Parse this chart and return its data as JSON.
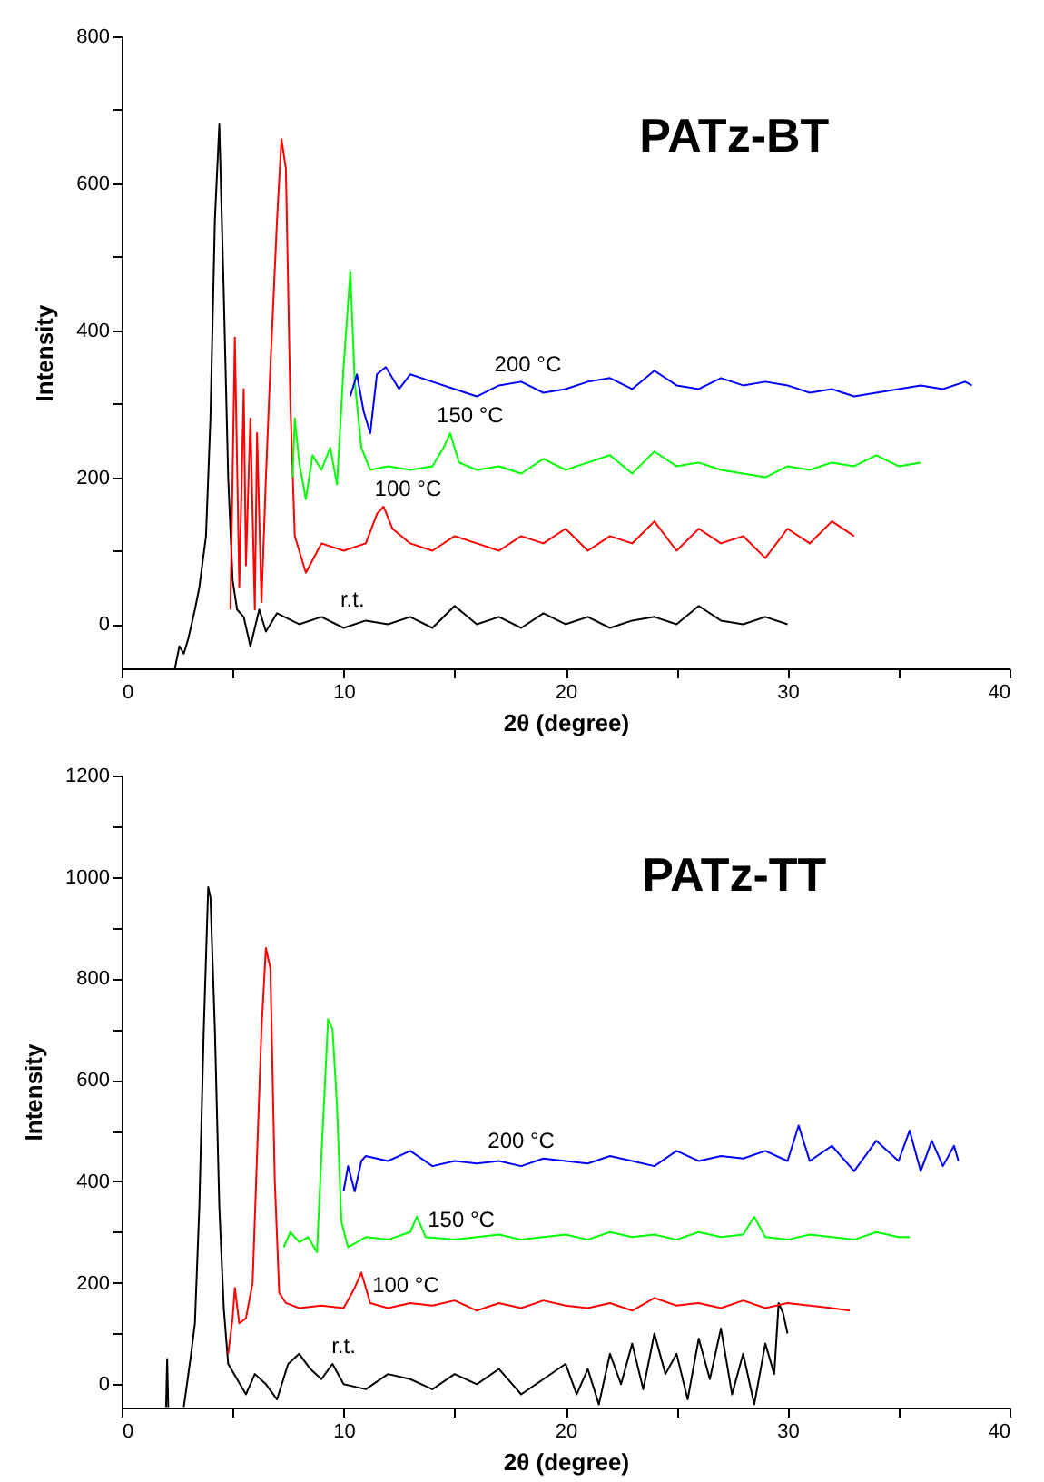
{
  "chart_data": [
    {
      "type": "line",
      "title": "PATz-BT",
      "xlabel": "2θ (degree)",
      "ylabel": "Intensity",
      "xlim": [
        0,
        40
      ],
      "ylim": [
        -60,
        800
      ],
      "xticks": [
        0,
        {
          "value": 5,
          "label": null
        },
        10,
        {
          "value": 15,
          "label": null
        },
        20,
        {
          "value": 25,
          "label": null
        },
        30,
        {
          "value": 35,
          "label": null
        },
        40
      ],
      "yticks": [
        0,
        {
          "value": 100,
          "label": null
        },
        200,
        {
          "value": 300,
          "label": null
        },
        400,
        {
          "value": 500,
          "label": null
        },
        600,
        {
          "value": 700,
          "label": null
        },
        800
      ],
      "grid": false,
      "legend": false,
      "series": [
        {
          "name": "r.t.",
          "color": "#000000",
          "x": [
            2.4,
            2.6,
            2.8,
            3.0,
            3.3,
            3.5,
            3.8,
            4.0,
            4.2,
            4.4,
            4.6,
            4.8,
            5.0,
            5.2,
            5.5,
            5.8,
            6.2,
            6.5,
            7,
            8,
            9,
            10,
            11,
            12,
            13,
            14,
            15,
            16,
            17,
            18,
            19,
            20,
            21,
            22,
            23,
            24,
            25,
            26,
            27,
            28,
            29,
            30
          ],
          "values": [
            -60,
            -30,
            -40,
            -20,
            20,
            50,
            120,
            280,
            550,
            680,
            450,
            200,
            60,
            20,
            10,
            -30,
            20,
            -10,
            15,
            0,
            10,
            -5,
            5,
            0,
            10,
            -5,
            25,
            0,
            10,
            -5,
            15,
            0,
            10,
            -5,
            5,
            10,
            0,
            25,
            5,
            0,
            10,
            0
          ]
        },
        {
          "name": "100 °C",
          "color": "#ff0000",
          "x": [
            4.9,
            5.1,
            5.3,
            5.5,
            5.6,
            5.8,
            6.0,
            6.1,
            6.3,
            6.5,
            6.7,
            7.0,
            7.2,
            7.4,
            7.6,
            7.8,
            8.0,
            8.3,
            9,
            10,
            11,
            11.5,
            11.8,
            12.2,
            13,
            14,
            15,
            16,
            17,
            18,
            19,
            20,
            21,
            22,
            23,
            24,
            25,
            26,
            27,
            28,
            29,
            30,
            31,
            32,
            33
          ],
          "values": [
            20,
            390,
            50,
            320,
            80,
            280,
            20,
            260,
            30,
            200,
            350,
            550,
            660,
            620,
            300,
            120,
            100,
            70,
            110,
            100,
            110,
            150,
            160,
            130,
            110,
            100,
            120,
            110,
            100,
            120,
            110,
            130,
            100,
            120,
            110,
            140,
            100,
            130,
            110,
            120,
            90,
            130,
            110,
            140,
            120
          ]
        },
        {
          "name": "150 °C",
          "color": "#00ff00",
          "x": [
            7.7,
            7.8,
            8.0,
            8.3,
            8.6,
            9.0,
            9.4,
            9.7,
            10.0,
            10.3,
            10.5,
            10.8,
            11.2,
            12,
            13,
            14,
            14.5,
            14.8,
            15.2,
            16,
            17,
            18,
            19,
            20,
            21,
            22,
            23,
            24,
            25,
            26,
            27,
            28,
            29,
            30,
            31,
            32,
            33,
            34,
            35,
            36
          ],
          "values": [
            200,
            280,
            220,
            170,
            230,
            210,
            240,
            190,
            350,
            480,
            330,
            240,
            210,
            215,
            210,
            215,
            240,
            260,
            220,
            210,
            215,
            205,
            225,
            210,
            220,
            230,
            205,
            235,
            215,
            220,
            210,
            205,
            200,
            215,
            210,
            220,
            215,
            230,
            215,
            220
          ]
        },
        {
          "name": "200 °C",
          "color": "#0000ff",
          "x": [
            10.3,
            10.6,
            10.9,
            11.2,
            11.5,
            11.9,
            12.5,
            13,
            14,
            15,
            16,
            17,
            18,
            19,
            20,
            21,
            22,
            23,
            24,
            25,
            26,
            27,
            28,
            29,
            30,
            31,
            32,
            33,
            34,
            35,
            36,
            37,
            38,
            38.3
          ],
          "values": [
            310,
            340,
            290,
            260,
            340,
            350,
            320,
            340,
            330,
            320,
            310,
            325,
            330,
            315,
            320,
            330,
            335,
            320,
            345,
            325,
            320,
            335,
            325,
            330,
            325,
            315,
            320,
            310,
            315,
            320,
            325,
            320,
            330,
            325
          ]
        }
      ]
    },
    {
      "type": "line",
      "title": "PATz-TT",
      "xlabel": "2θ (degree)",
      "ylabel": "Intensity",
      "xlim": [
        0,
        40
      ],
      "ylim": [
        -46,
        1200
      ],
      "xticks": [
        0,
        {
          "value": 5,
          "label": null
        },
        10,
        {
          "value": 15,
          "label": null
        },
        20,
        {
          "value": 25,
          "label": null
        },
        30,
        {
          "value": 35,
          "label": null
        },
        40
      ],
      "yticks": [
        0,
        {
          "value": 100,
          "label": null
        },
        200,
        {
          "value": 300,
          "label": null
        },
        400,
        {
          "value": 500,
          "label": null
        },
        600,
        {
          "value": 700,
          "label": null
        },
        800,
        {
          "value": 900,
          "label": null
        },
        1000,
        {
          "value": 1100,
          "label": null
        },
        1200
      ],
      "grid": false,
      "legend": false,
      "series": [
        {
          "name": "r.t.",
          "color": "#000000",
          "x": [
            2.0,
            2.05,
            2.1,
            2.4,
            2.8,
            3.1,
            3.3,
            3.5,
            3.7,
            3.9,
            4.0,
            4.2,
            4.4,
            4.6,
            4.8,
            5.2,
            5.6,
            6,
            6.5,
            7,
            7.5,
            8,
            8.5,
            9,
            9.5,
            10,
            11,
            12,
            13,
            14,
            15,
            16,
            17,
            18,
            19,
            20,
            20.5,
            21,
            21.5,
            22,
            22.5,
            23,
            23.5,
            24,
            24.5,
            25,
            25.5,
            26,
            26.5,
            27,
            27.5,
            28,
            28.5,
            29,
            29.4,
            29.6,
            29.8,
            30
          ],
          "values": [
            -45,
            50,
            -45,
            null,
            -45,
            50,
            120,
            350,
            700,
            980,
            960,
            700,
            350,
            150,
            40,
            10,
            -20,
            20,
            0,
            -30,
            40,
            60,
            30,
            10,
            40,
            0,
            -10,
            20,
            10,
            -10,
            20,
            0,
            30,
            -20,
            10,
            40,
            -20,
            30,
            -40,
            60,
            0,
            80,
            -10,
            100,
            20,
            60,
            -30,
            90,
            10,
            110,
            -20,
            60,
            -40,
            80,
            20,
            160,
            140,
            100
          ]
        },
        {
          "name": "100 °C",
          "color": "#ff0000",
          "x": [
            4.8,
            5.0,
            5.1,
            5.3,
            5.6,
            5.9,
            6.1,
            6.3,
            6.5,
            6.7,
            6.9,
            7.1,
            7.4,
            8,
            9,
            10,
            10.5,
            10.8,
            11.2,
            12,
            13,
            14,
            15,
            16,
            17,
            18,
            19,
            20,
            21,
            22,
            23,
            24,
            25,
            26,
            27,
            28,
            29,
            30,
            31,
            32,
            32.8
          ],
          "values": [
            60,
            130,
            190,
            120,
            130,
            200,
            450,
            700,
            860,
            820,
            400,
            180,
            160,
            150,
            155,
            150,
            190,
            220,
            160,
            150,
            160,
            155,
            165,
            145,
            160,
            150,
            165,
            155,
            150,
            160,
            145,
            170,
            155,
            160,
            150,
            165,
            150,
            160,
            155,
            150,
            145
          ]
        },
        {
          "name": "150 °C",
          "color": "#00ff00",
          "x": [
            7.3,
            7.6,
            8.0,
            8.4,
            8.8,
            9.0,
            9.3,
            9.5,
            9.7,
            9.9,
            10.2,
            11,
            12,
            13,
            13.3,
            13.7,
            15,
            16,
            17,
            18,
            19,
            20,
            21,
            22,
            23,
            24,
            25,
            26,
            27,
            28,
            28.5,
            29,
            30,
            31,
            32,
            33,
            34,
            35,
            35.5
          ],
          "values": [
            270,
            300,
            280,
            290,
            260,
            450,
            720,
            700,
            550,
            320,
            270,
            290,
            285,
            300,
            330,
            290,
            285,
            290,
            295,
            285,
            290,
            295,
            285,
            300,
            290,
            295,
            285,
            300,
            290,
            295,
            330,
            290,
            285,
            295,
            290,
            285,
            300,
            290,
            290
          ]
        },
        {
          "name": "200 °C",
          "color": "#0000ff",
          "x": [
            10.0,
            10.2,
            10.5,
            10.8,
            11,
            12,
            13,
            14,
            15,
            16,
            17,
            18,
            19,
            20,
            21,
            22,
            23,
            24,
            25,
            26,
            27,
            28,
            29,
            30,
            30.5,
            31,
            32,
            33,
            34,
            35,
            35.5,
            36,
            36.5,
            37,
            37.5,
            37.7
          ],
          "values": [
            380,
            430,
            380,
            440,
            450,
            440,
            460,
            430,
            440,
            435,
            440,
            430,
            445,
            440,
            435,
            450,
            440,
            430,
            460,
            440,
            450,
            445,
            460,
            440,
            510,
            440,
            470,
            420,
            480,
            440,
            500,
            420,
            480,
            430,
            470,
            440
          ]
        }
      ]
    }
  ]
}
